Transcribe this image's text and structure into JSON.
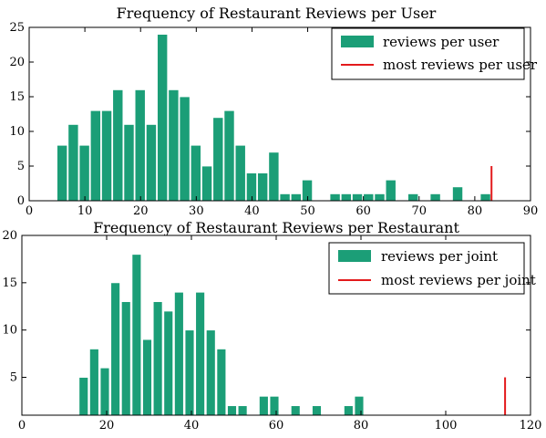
{
  "colors": {
    "bar": "#1b9e77",
    "marker": "#e31a1c",
    "frame": "#000000"
  },
  "chart_data": [
    {
      "type": "bar",
      "title": "Frequency of Restaurant Reviews per User",
      "xlabel": "",
      "ylabel": "",
      "xlim": [
        0,
        90
      ],
      "ylim": [
        0,
        25
      ],
      "x_ticks": [
        0,
        10,
        20,
        30,
        40,
        50,
        60,
        70,
        80,
        90
      ],
      "y_ticks": [
        0,
        5,
        10,
        15,
        20,
        25
      ],
      "bin_width": 2,
      "bins": [
        {
          "x": 5,
          "y": 8
        },
        {
          "x": 7,
          "y": 11
        },
        {
          "x": 9,
          "y": 8
        },
        {
          "x": 11,
          "y": 13
        },
        {
          "x": 13,
          "y": 13
        },
        {
          "x": 15,
          "y": 16
        },
        {
          "x": 17,
          "y": 11
        },
        {
          "x": 19,
          "y": 16
        },
        {
          "x": 21,
          "y": 11
        },
        {
          "x": 23,
          "y": 24
        },
        {
          "x": 25,
          "y": 16
        },
        {
          "x": 27,
          "y": 15
        },
        {
          "x": 29,
          "y": 8
        },
        {
          "x": 31,
          "y": 5
        },
        {
          "x": 33,
          "y": 12
        },
        {
          "x": 35,
          "y": 13
        },
        {
          "x": 37,
          "y": 8
        },
        {
          "x": 39,
          "y": 4
        },
        {
          "x": 41,
          "y": 4
        },
        {
          "x": 43,
          "y": 7
        },
        {
          "x": 45,
          "y": 1
        },
        {
          "x": 47,
          "y": 1
        },
        {
          "x": 49,
          "y": 3
        },
        {
          "x": 54,
          "y": 1
        },
        {
          "x": 56,
          "y": 1
        },
        {
          "x": 58,
          "y": 1
        },
        {
          "x": 60,
          "y": 1
        },
        {
          "x": 62,
          "y": 1
        },
        {
          "x": 64,
          "y": 3
        },
        {
          "x": 68,
          "y": 1
        },
        {
          "x": 72,
          "y": 1
        },
        {
          "x": 76,
          "y": 2
        },
        {
          "x": 81,
          "y": 1
        }
      ],
      "marker": {
        "x": 83,
        "y": 5
      },
      "legend": {
        "position": "top-right",
        "entries": [
          {
            "label": "reviews per user",
            "kind": "bar"
          },
          {
            "label": "most reviews per user",
            "kind": "line"
          }
        ]
      }
    },
    {
      "type": "bar",
      "title": "Frequency of Restaurant Reviews per Restaurant",
      "xlabel": "",
      "ylabel": "",
      "xlim": [
        0,
        120
      ],
      "ylim": [
        1,
        20
      ],
      "x_ticks": [
        0,
        20,
        40,
        60,
        80,
        100,
        120
      ],
      "y_ticks": [
        5,
        10,
        15,
        20
      ],
      "bin_width": 2.35,
      "bins": [
        {
          "x": 13.5,
          "y": 5
        },
        {
          "x": 16,
          "y": 8
        },
        {
          "x": 18.5,
          "y": 6
        },
        {
          "x": 21,
          "y": 15
        },
        {
          "x": 23.5,
          "y": 13
        },
        {
          "x": 26,
          "y": 18
        },
        {
          "x": 28.5,
          "y": 9
        },
        {
          "x": 31,
          "y": 13
        },
        {
          "x": 33.5,
          "y": 12
        },
        {
          "x": 36,
          "y": 14
        },
        {
          "x": 38.5,
          "y": 10
        },
        {
          "x": 41,
          "y": 14
        },
        {
          "x": 43.5,
          "y": 10
        },
        {
          "x": 46,
          "y": 8
        },
        {
          "x": 48.5,
          "y": 2
        },
        {
          "x": 51,
          "y": 2
        },
        {
          "x": 56,
          "y": 3
        },
        {
          "x": 58.5,
          "y": 3
        },
        {
          "x": 63.5,
          "y": 2
        },
        {
          "x": 68.5,
          "y": 2
        },
        {
          "x": 76,
          "y": 2
        },
        {
          "x": 78.5,
          "y": 3
        }
      ],
      "marker": {
        "x": 114,
        "y": 5
      },
      "legend": {
        "position": "top-right",
        "entries": [
          {
            "label": "reviews per joint",
            "kind": "bar"
          },
          {
            "label": "most reviews per joint",
            "kind": "line"
          }
        ]
      }
    }
  ]
}
